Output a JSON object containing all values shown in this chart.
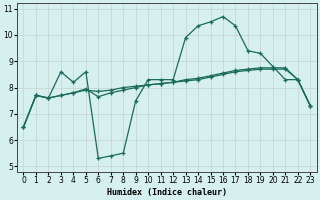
{
  "xlabel": "Humidex (Indice chaleur)",
  "bg_color": "#d5f0ee",
  "grid_color": "#c8d8d0",
  "line_color": "#1a6b5a",
  "xlim": [
    -0.5,
    23.5
  ],
  "ylim": [
    4.8,
    11.2
  ],
  "xticks": [
    0,
    1,
    2,
    3,
    4,
    5,
    6,
    7,
    8,
    9,
    10,
    11,
    12,
    13,
    14,
    15,
    16,
    17,
    18,
    19,
    20,
    21,
    22,
    23
  ],
  "yticks": [
    5,
    6,
    7,
    8,
    9,
    10,
    11
  ],
  "series1_x": [
    0,
    1,
    2,
    3,
    4,
    5,
    6,
    7,
    8,
    9,
    10,
    11,
    12,
    13,
    14,
    15,
    16,
    17,
    18,
    19,
    20,
    21,
    22,
    23
  ],
  "series1_y": [
    6.5,
    7.7,
    7.6,
    8.6,
    8.2,
    8.6,
    5.3,
    5.4,
    5.5,
    7.5,
    8.3,
    8.3,
    8.3,
    9.9,
    10.35,
    10.5,
    10.7,
    10.35,
    9.4,
    9.3,
    8.8,
    8.3,
    8.3,
    7.3
  ],
  "series2_x": [
    0,
    1,
    2,
    3,
    4,
    5,
    6,
    7,
    8,
    9,
    10,
    11,
    12,
    13,
    14,
    15,
    16,
    17,
    18,
    19,
    20,
    21,
    22,
    23
  ],
  "series2_y": [
    6.5,
    7.7,
    7.6,
    7.7,
    7.8,
    7.9,
    7.85,
    7.9,
    8.0,
    8.05,
    8.1,
    8.15,
    8.2,
    8.3,
    8.35,
    8.45,
    8.55,
    8.65,
    8.7,
    8.75,
    8.75,
    8.75,
    8.3,
    7.3
  ],
  "series3_x": [
    0,
    1,
    2,
    3,
    4,
    5,
    6,
    7,
    8,
    9,
    10,
    11,
    12,
    13,
    14,
    15,
    16,
    17,
    18,
    19,
    20,
    21,
    22,
    23
  ],
  "series3_y": [
    6.5,
    7.7,
    7.6,
    7.7,
    7.8,
    7.95,
    7.65,
    7.8,
    7.9,
    8.0,
    8.1,
    8.15,
    8.2,
    8.25,
    8.3,
    8.4,
    8.5,
    8.6,
    8.65,
    8.7,
    8.7,
    8.7,
    8.3,
    7.3
  ]
}
